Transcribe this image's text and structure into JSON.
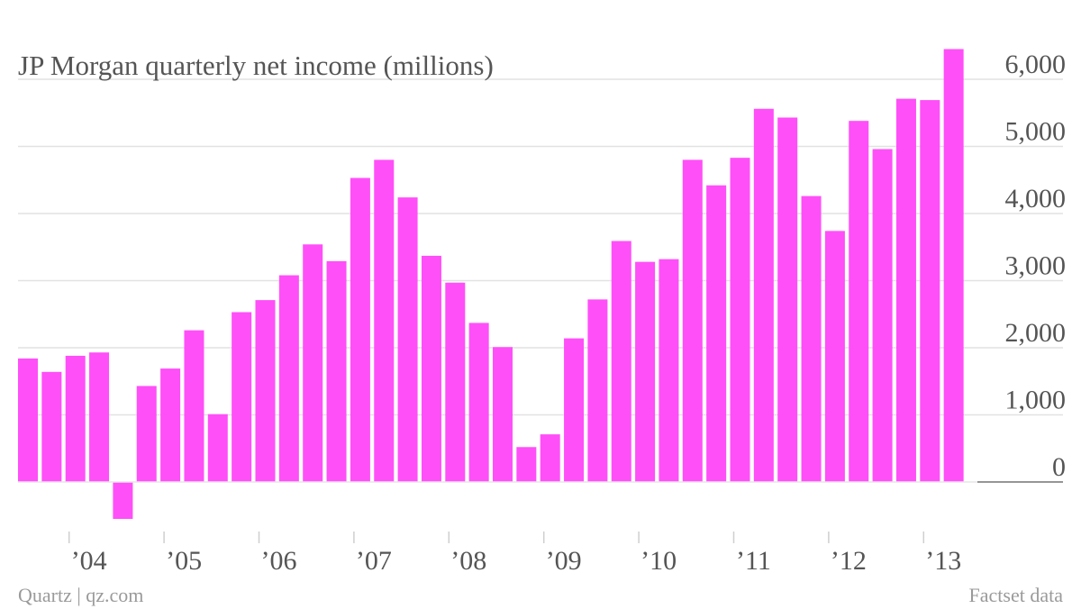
{
  "chart_data": {
    "type": "bar",
    "title": "JP Morgan quarterly net income (millions)",
    "xlabel": "",
    "ylabel": "",
    "ylim": [
      -600,
      6500
    ],
    "y_ticks": [
      0,
      1000,
      2000,
      3000,
      4000,
      5000,
      6000
    ],
    "y_tick_labels": [
      "0",
      "1,000",
      "2,000",
      "3,000",
      "4,000",
      "5,000",
      "6,000"
    ],
    "y_axis_side": "right",
    "grid": true,
    "color": "#ff4ff8",
    "x_tick_labels": [
      "’04",
      "’05",
      "’06",
      "’07",
      "’08",
      "’09",
      "’10",
      "’11",
      "’12",
      "’13"
    ],
    "year_start_index": [
      2,
      6,
      10,
      14,
      18,
      22,
      26,
      30,
      34,
      38
    ],
    "values": [
      1840,
      1640,
      1880,
      1930,
      -550,
      1430,
      1690,
      2260,
      1010,
      2530,
      2710,
      3080,
      3540,
      3290,
      4530,
      4800,
      4240,
      3370,
      2970,
      2370,
      2010,
      520,
      710,
      2140,
      2720,
      3590,
      3280,
      3320,
      4800,
      4420,
      4830,
      5560,
      5430,
      4260,
      3740,
      5380,
      4960,
      5710,
      5690,
      6450
    ]
  },
  "footer": {
    "source_left": "Quartz | qz.com",
    "source_right": "Factset data"
  }
}
